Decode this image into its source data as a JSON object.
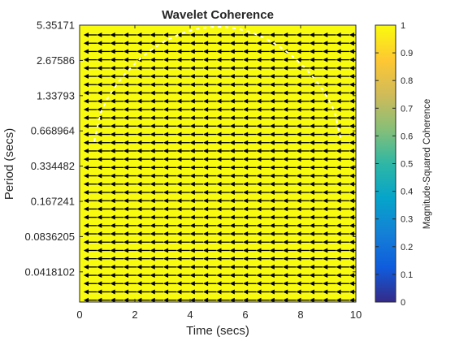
{
  "chart_data": {
    "type": "heatmap",
    "title": "Wavelet Coherence",
    "xlabel": "Time (secs)",
    "ylabel": "Period (secs)",
    "xlim": [
      0,
      10
    ],
    "x_ticks": [
      0,
      2,
      4,
      6,
      8,
      10
    ],
    "y_scale": "log",
    "y_tick_labels": [
      "5.35171",
      "2.67586",
      "1.33793",
      "0.668964",
      "0.334482",
      "0.167241",
      "0.0836205",
      "0.0418102"
    ],
    "z": {
      "value": 1,
      "description": "uniform magnitude-squared coherence"
    },
    "colorbar": {
      "label": "Magnitude-Squared Coherence",
      "range": [
        0,
        1
      ],
      "ticks": [
        0,
        0.1,
        0.2,
        0.3,
        0.4,
        0.5,
        0.6,
        0.7,
        0.8,
        0.9,
        1
      ],
      "colormap": "parula"
    },
    "phase_arrows": {
      "direction": "left",
      "rows": 33,
      "cols": 21,
      "color": "#000000"
    },
    "cone_of_influence": {
      "style": "dashed",
      "color": "#ffffff"
    },
    "grid": false,
    "legend": "none"
  },
  "colors": {
    "field": "#f9fb0e",
    "arrows": "#000000",
    "coi": "#ffffff",
    "parula_stops": [
      "#352a87",
      "#0f5cdd",
      "#1481d6",
      "#06a4ca",
      "#2eb7a4",
      "#87bf77",
      "#d1bb59",
      "#fec832",
      "#f9fb0e"
    ]
  }
}
